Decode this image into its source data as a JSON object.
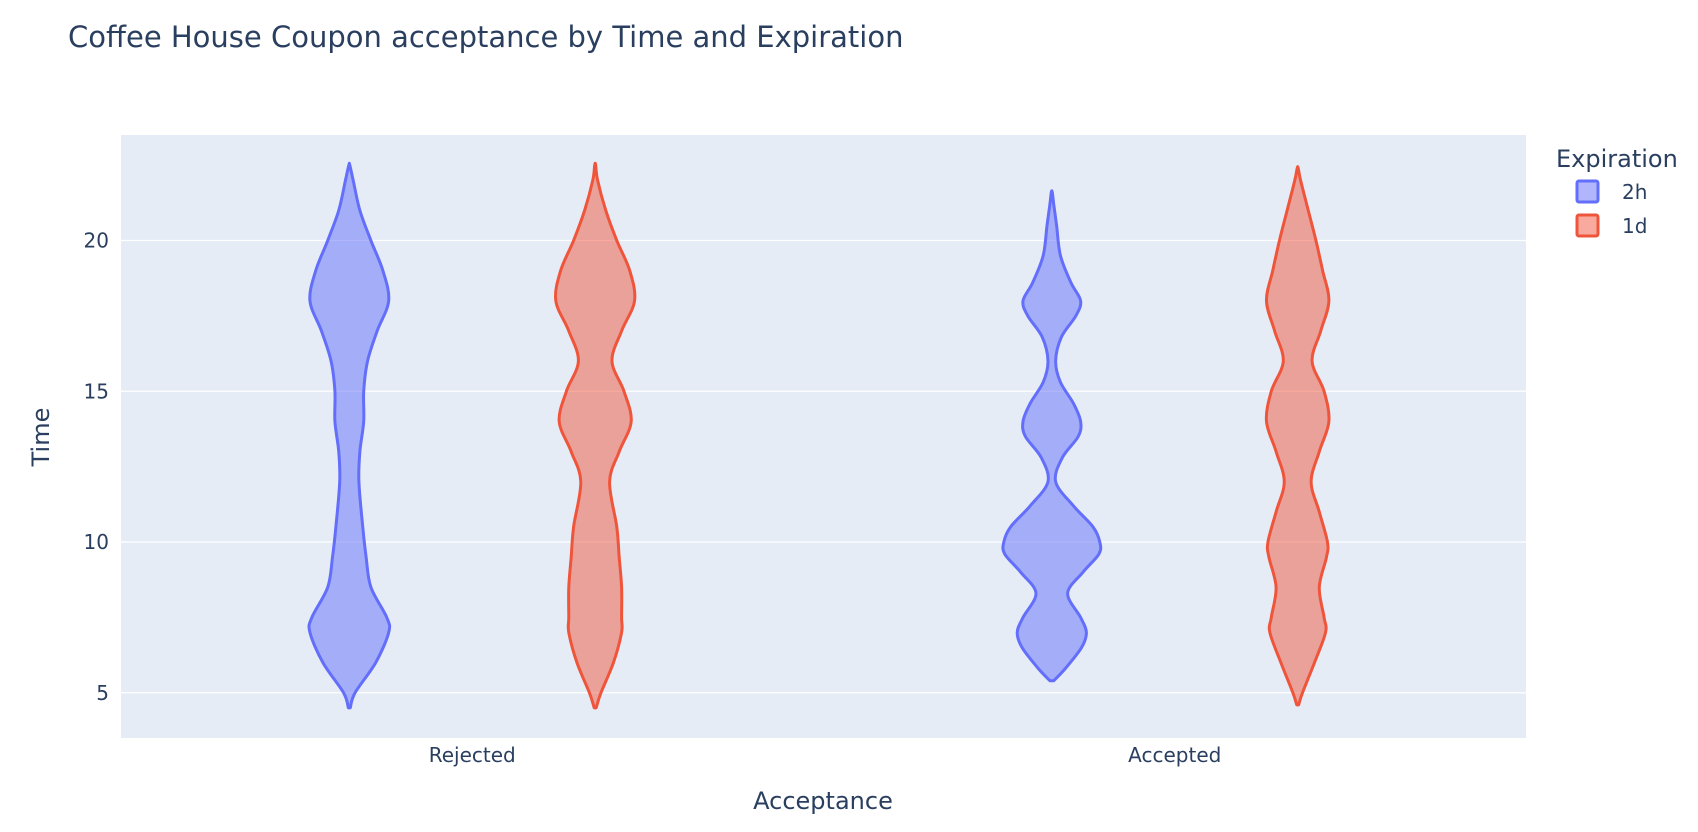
{
  "chart_data": {
    "type": "violin",
    "title": "Coffee House Coupon acceptance by Time and Expiration",
    "xlabel": "Acceptance",
    "ylabel": "Time",
    "categories": [
      "Rejected",
      "Accepted"
    ],
    "ylim": [
      3.5,
      23.5
    ],
    "yticks": [
      5,
      10,
      15,
      20
    ],
    "grid": true,
    "legend": {
      "title": "Expiration",
      "position": "top-right"
    },
    "series": [
      {
        "name": "2h",
        "color": "#636efa",
        "fill": "rgba(99,110,250,0.5)",
        "violins": [
          {
            "category": "Rejected",
            "ymin": 4.5,
            "ymax": 22.5,
            "density": [
              [
                4.5,
                0.02
              ],
              [
                5,
                0.12
              ],
              [
                6,
                0.55
              ],
              [
                7,
                0.82
              ],
              [
                7.5,
                0.78
              ],
              [
                8.5,
                0.45
              ],
              [
                9.5,
                0.35
              ],
              [
                10.5,
                0.28
              ],
              [
                12,
                0.2
              ],
              [
                13,
                0.22
              ],
              [
                14,
                0.3
              ],
              [
                15,
                0.3
              ],
              [
                16,
                0.38
              ],
              [
                17,
                0.58
              ],
              [
                18,
                0.82
              ],
              [
                19,
                0.7
              ],
              [
                20,
                0.45
              ],
              [
                21,
                0.22
              ],
              [
                22,
                0.08
              ],
              [
                22.5,
                0.01
              ]
            ]
          },
          {
            "category": "Accepted",
            "ymin": 5.4,
            "ymax": 21.6,
            "density": [
              [
                5.4,
                0.04
              ],
              [
                5.8,
                0.28
              ],
              [
                6.5,
                0.62
              ],
              [
                7,
                0.72
              ],
              [
                7.5,
                0.6
              ],
              [
                8.3,
                0.33
              ],
              [
                9,
                0.65
              ],
              [
                9.6,
                0.98
              ],
              [
                10,
                1.0
              ],
              [
                10.5,
                0.86
              ],
              [
                11.2,
                0.45
              ],
              [
                12,
                0.08
              ],
              [
                12.8,
                0.22
              ],
              [
                13.5,
                0.55
              ],
              [
                14,
                0.6
              ],
              [
                14.6,
                0.45
              ],
              [
                15.3,
                0.18
              ],
              [
                16,
                0.08
              ],
              [
                16.8,
                0.2
              ],
              [
                17.5,
                0.5
              ],
              [
                18,
                0.6
              ],
              [
                18.6,
                0.4
              ],
              [
                19.5,
                0.18
              ],
              [
                20.5,
                0.1
              ],
              [
                21.2,
                0.04
              ],
              [
                21.6,
                0.01
              ]
            ]
          }
        ]
      },
      {
        "name": "1d",
        "color": "#ef553b",
        "fill": "rgba(239,85,59,0.5)",
        "violins": [
          {
            "category": "Rejected",
            "ymin": 4.5,
            "ymax": 22.5,
            "density": [
              [
                4.5,
                0.02
              ],
              [
                5,
                0.12
              ],
              [
                6,
                0.38
              ],
              [
                7,
                0.55
              ],
              [
                7.5,
                0.55
              ],
              [
                8.5,
                0.55
              ],
              [
                9.5,
                0.5
              ],
              [
                10.5,
                0.45
              ],
              [
                12,
                0.3
              ],
              [
                13,
                0.5
              ],
              [
                14,
                0.75
              ],
              [
                15,
                0.6
              ],
              [
                16,
                0.35
              ],
              [
                17,
                0.55
              ],
              [
                18,
                0.82
              ],
              [
                19,
                0.72
              ],
              [
                20,
                0.45
              ],
              [
                21,
                0.22
              ],
              [
                22,
                0.05
              ],
              [
                22.5,
                0.01
              ]
            ]
          },
          {
            "category": "Accepted",
            "ymin": 4.6,
            "ymax": 22.4,
            "density": [
              [
                4.6,
                0.02
              ],
              [
                5,
                0.1
              ],
              [
                6,
                0.35
              ],
              [
                7,
                0.58
              ],
              [
                7.5,
                0.55
              ],
              [
                8.5,
                0.45
              ],
              [
                9.5,
                0.6
              ],
              [
                10,
                0.62
              ],
              [
                11,
                0.45
              ],
              [
                12,
                0.28
              ],
              [
                13,
                0.45
              ],
              [
                14,
                0.65
              ],
              [
                15,
                0.55
              ],
              [
                16,
                0.3
              ],
              [
                17,
                0.48
              ],
              [
                18,
                0.65
              ],
              [
                19,
                0.52
              ],
              [
                20,
                0.38
              ],
              [
                21,
                0.22
              ],
              [
                22,
                0.06
              ],
              [
                22.4,
                0.01
              ]
            ]
          }
        ]
      }
    ]
  }
}
